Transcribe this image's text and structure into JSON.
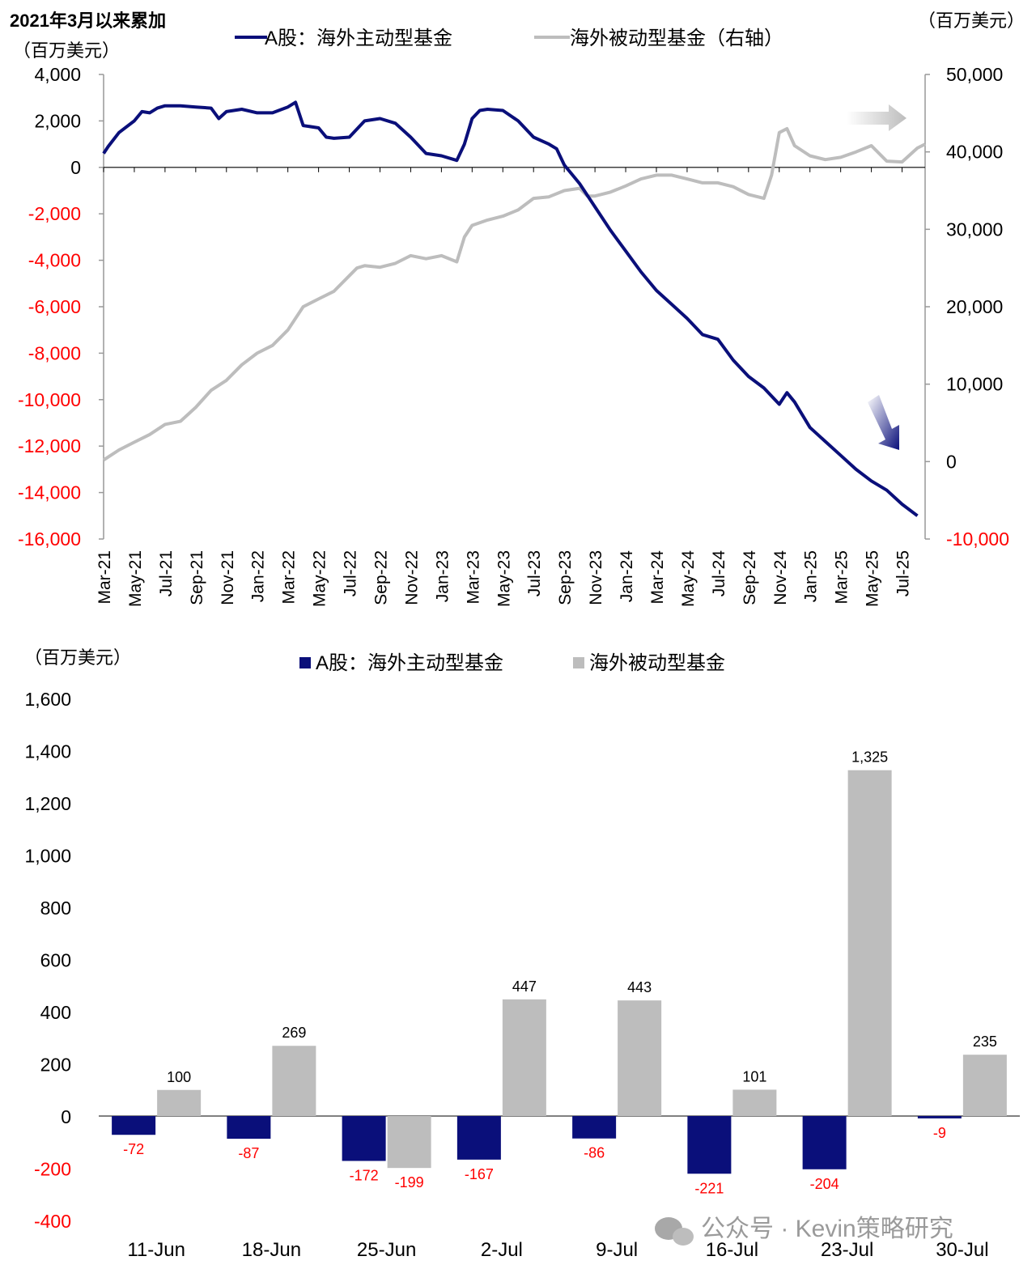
{
  "colors": {
    "active": "#0a0f7a",
    "passive": "#bdbdbd",
    "negative": "#ff0000",
    "axis": "#999999",
    "label": "#000000"
  },
  "chart_data": [
    {
      "type": "line",
      "title": "2021年3月以来累加",
      "ylabel_left": "（百万美元）",
      "ylabel_right": "（百万美元）",
      "legend": [
        "A股：海外主动型基金",
        "海外被动型基金（右轴）"
      ],
      "legend_position": "top",
      "ylim_left": [
        -16000,
        4000
      ],
      "ylim_right": [
        -10000,
        50000
      ],
      "yticks_left": [
        "4,000",
        "2,000",
        "0",
        "-2,000",
        "-4,000",
        "-6,000",
        "-8,000",
        "-10,000",
        "-12,000",
        "-14,000",
        "-16,000"
      ],
      "yticks_right": [
        "50,000",
        "40,000",
        "30,000",
        "20,000",
        "10,000",
        "0",
        "-10,000"
      ],
      "x_labels": [
        "Mar-21",
        "May-21",
        "Jul-21",
        "Sep-21",
        "Nov-21",
        "Jan-22",
        "Mar-22",
        "May-22",
        "Jul-22",
        "Sep-22",
        "Nov-22",
        "Jan-23",
        "Mar-23",
        "May-23",
        "Jul-23",
        "Sep-23",
        "Nov-23",
        "Jan-24",
        "Mar-24",
        "May-24",
        "Jul-24",
        "Sep-24",
        "Nov-24",
        "Jan-25",
        "Mar-25",
        "May-25",
        "Jul-25"
      ],
      "x_months": [
        0,
        2,
        4,
        6,
        8,
        10,
        12,
        14,
        16,
        18,
        20,
        22,
        24,
        26,
        28,
        30,
        32,
        34,
        36,
        38,
        40,
        42,
        44,
        46,
        48,
        50,
        52
      ],
      "x_range_months": [
        0,
        53.5
      ],
      "series": [
        {
          "name": "A股：海外主动型基金",
          "axis": "left",
          "points": [
            [
              0,
              600
            ],
            [
              0.3,
              900
            ],
            [
              1,
              1500
            ],
            [
              2,
              2000
            ],
            [
              2.5,
              2400
            ],
            [
              3,
              2350
            ],
            [
              3.5,
              2550
            ],
            [
              4,
              2650
            ],
            [
              5,
              2650
            ],
            [
              6,
              2600
            ],
            [
              7,
              2550
            ],
            [
              7.5,
              2100
            ],
            [
              8,
              2400
            ],
            [
              9,
              2500
            ],
            [
              10,
              2350
            ],
            [
              11,
              2350
            ],
            [
              12,
              2600
            ],
            [
              12.5,
              2800
            ],
            [
              13,
              1800
            ],
            [
              14,
              1700
            ],
            [
              14.5,
              1300
            ],
            [
              15,
              1250
            ],
            [
              16,
              1300
            ],
            [
              17,
              2000
            ],
            [
              18,
              2100
            ],
            [
              19,
              1900
            ],
            [
              20,
              1300
            ],
            [
              21,
              600
            ],
            [
              22,
              500
            ],
            [
              23,
              300
            ],
            [
              23.5,
              1000
            ],
            [
              24,
              2100
            ],
            [
              24.5,
              2450
            ],
            [
              25,
              2500
            ],
            [
              26,
              2450
            ],
            [
              27,
              2000
            ],
            [
              28,
              1300
            ],
            [
              29,
              1000
            ],
            [
              29.5,
              800
            ],
            [
              30,
              100
            ],
            [
              31,
              -700
            ],
            [
              32,
              -1700
            ],
            [
              33,
              -2700
            ],
            [
              34,
              -3600
            ],
            [
              35,
              -4500
            ],
            [
              36,
              -5300
            ],
            [
              37,
              -5900
            ],
            [
              38,
              -6500
            ],
            [
              39,
              -7200
            ],
            [
              40,
              -7400
            ],
            [
              41,
              -8300
            ],
            [
              42,
              -9000
            ],
            [
              43,
              -9500
            ],
            [
              44,
              -10200
            ],
            [
              44.5,
              -9700
            ],
            [
              45,
              -10100
            ],
            [
              46,
              -11200
            ],
            [
              47,
              -11800
            ],
            [
              48,
              -12400
            ],
            [
              49,
              -13000
            ],
            [
              50,
              -13500
            ],
            [
              51,
              -13900
            ],
            [
              52,
              -14500
            ],
            [
              53,
              -15000
            ]
          ]
        },
        {
          "name": "海外被动型基金（右轴）",
          "axis": "right",
          "points": [
            [
              0,
              200
            ],
            [
              1,
              1500
            ],
            [
              2,
              2500
            ],
            [
              3,
              3500
            ],
            [
              4,
              4800
            ],
            [
              5,
              5200
            ],
            [
              6,
              7000
            ],
            [
              7,
              9200
            ],
            [
              8,
              10500
            ],
            [
              9,
              12500
            ],
            [
              10,
              14000
            ],
            [
              11,
              15000
            ],
            [
              12,
              17000
            ],
            [
              13,
              20000
            ],
            [
              14,
              21000
            ],
            [
              15,
              22000
            ],
            [
              16,
              24000
            ],
            [
              16.5,
              25000
            ],
            [
              17,
              25300
            ],
            [
              18,
              25100
            ],
            [
              19,
              25600
            ],
            [
              20,
              26600
            ],
            [
              21,
              26200
            ],
            [
              22,
              26600
            ],
            [
              23,
              25800
            ],
            [
              23.5,
              29000
            ],
            [
              24,
              30500
            ],
            [
              25,
              31200
            ],
            [
              26,
              31700
            ],
            [
              27,
              32500
            ],
            [
              28,
              34000
            ],
            [
              29,
              34200
            ],
            [
              30,
              35000
            ],
            [
              31,
              35300
            ],
            [
              31.5,
              34300
            ],
            [
              32,
              34300
            ],
            [
              33,
              34800
            ],
            [
              34,
              35600
            ],
            [
              35,
              36500
            ],
            [
              36,
              37000
            ],
            [
              37,
              37000
            ],
            [
              38,
              36500
            ],
            [
              39,
              36000
            ],
            [
              40,
              36000
            ],
            [
              41,
              35500
            ],
            [
              42,
              34500
            ],
            [
              43,
              34000
            ],
            [
              43.5,
              37000
            ],
            [
              44,
              42500
            ],
            [
              44.5,
              43000
            ],
            [
              45,
              40800
            ],
            [
              46,
              39500
            ],
            [
              47,
              39000
            ],
            [
              48,
              39300
            ],
            [
              49,
              40000
            ],
            [
              50,
              40800
            ],
            [
              51,
              38800
            ],
            [
              52,
              38700
            ],
            [
              53,
              40500
            ],
            [
              53.5,
              41000
            ]
          ]
        }
      ],
      "annotations": [
        "grey arrow pointing right near right axis top",
        "navy arrow pointing down-right near the A股 line end"
      ]
    },
    {
      "type": "bar",
      "ylabel": "（百万美元）",
      "legend": [
        "A股：海外主动型基金",
        "海外被动型基金"
      ],
      "legend_position": "top",
      "categories": [
        "11-Jun",
        "18-Jun",
        "25-Jun",
        "2-Jul",
        "9-Jul",
        "16-Jul",
        "23-Jul",
        "30-Jul"
      ],
      "series": [
        {
          "name": "A股：海外主动型基金",
          "values": [
            -72,
            -87,
            -172,
            -167,
            -86,
            -221,
            -204,
            -9
          ],
          "labels": [
            "-72",
            "-87",
            "-172",
            "-167",
            "-86",
            "-221",
            "-204",
            "-9"
          ]
        },
        {
          "name": "海外被动型基金",
          "values": [
            100,
            269,
            -199,
            447,
            443,
            101,
            1325,
            235
          ],
          "labels": [
            "100",
            "269",
            "-199",
            "447",
            "443",
            "101",
            "1,325",
            "235"
          ]
        }
      ],
      "ylim": [
        -400,
        1600
      ],
      "yticks": [
        "1,600",
        "1,400",
        "1,200",
        "1,000",
        "800",
        "600",
        "400",
        "200",
        "0",
        "-200",
        "-400"
      ]
    }
  ],
  "watermark": "公众号 · Kevin策略研究"
}
